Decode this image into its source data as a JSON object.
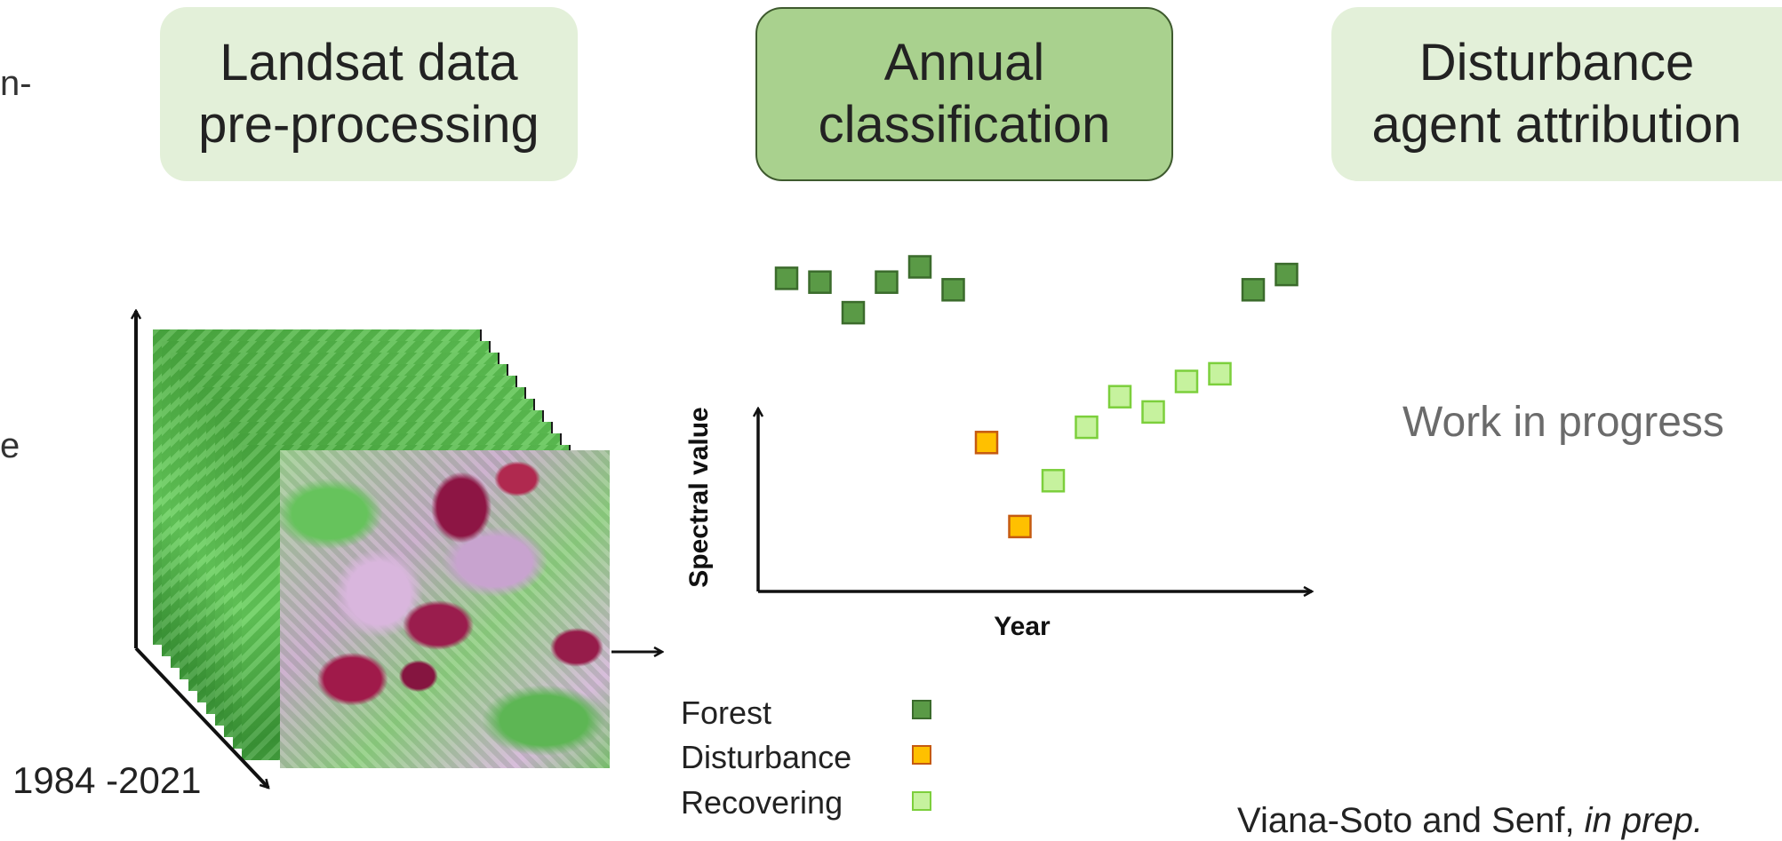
{
  "steps": {
    "step1": "Landsat data\npre-processing",
    "step2": "Annual\nclassification",
    "step3": "Disturbance\nagent attribution"
  },
  "edge_text": {
    "left_top": "n-",
    "left_middle": "e"
  },
  "years_label": "1984 -2021",
  "work_in_progress": "Work in progress",
  "citation_prefix": "Viana-Soto and Senf, ",
  "citation_italic": "in prep.",
  "chart_data": {
    "type": "scatter",
    "xlabel": "Year",
    "ylabel": "Spectral value",
    "ylim": [
      0,
      10
    ],
    "grid": false,
    "legend_placement": "bottom-left",
    "colors": {
      "Forest": {
        "fill": "#5a9a46",
        "stroke": "#3b6b2c"
      },
      "Disturbance": {
        "fill": "#ffc000",
        "stroke": "#c55a11"
      },
      "Recovering": {
        "fill": "#c6f29e",
        "stroke": "#7ccf3c"
      }
    },
    "points": [
      {
        "x": 1,
        "y": 8.2,
        "class": "Forest"
      },
      {
        "x": 2,
        "y": 8.1,
        "class": "Forest"
      },
      {
        "x": 3,
        "y": 7.3,
        "class": "Forest"
      },
      {
        "x": 4,
        "y": 8.1,
        "class": "Forest"
      },
      {
        "x": 5,
        "y": 8.5,
        "class": "Forest"
      },
      {
        "x": 6,
        "y": 7.9,
        "class": "Forest"
      },
      {
        "x": 7,
        "y": 3.9,
        "class": "Disturbance"
      },
      {
        "x": 8,
        "y": 1.7,
        "class": "Disturbance"
      },
      {
        "x": 9,
        "y": 2.9,
        "class": "Recovering"
      },
      {
        "x": 10,
        "y": 4.3,
        "class": "Recovering"
      },
      {
        "x": 11,
        "y": 5.1,
        "class": "Recovering"
      },
      {
        "x": 12,
        "y": 4.7,
        "class": "Recovering"
      },
      {
        "x": 13,
        "y": 5.5,
        "class": "Recovering"
      },
      {
        "x": 14,
        "y": 5.7,
        "class": "Recovering"
      },
      {
        "x": 15,
        "y": 7.9,
        "class": "Forest"
      },
      {
        "x": 16,
        "y": 8.3,
        "class": "Forest"
      }
    ],
    "legend": [
      "Forest",
      "Disturbance",
      "Recovering"
    ]
  }
}
